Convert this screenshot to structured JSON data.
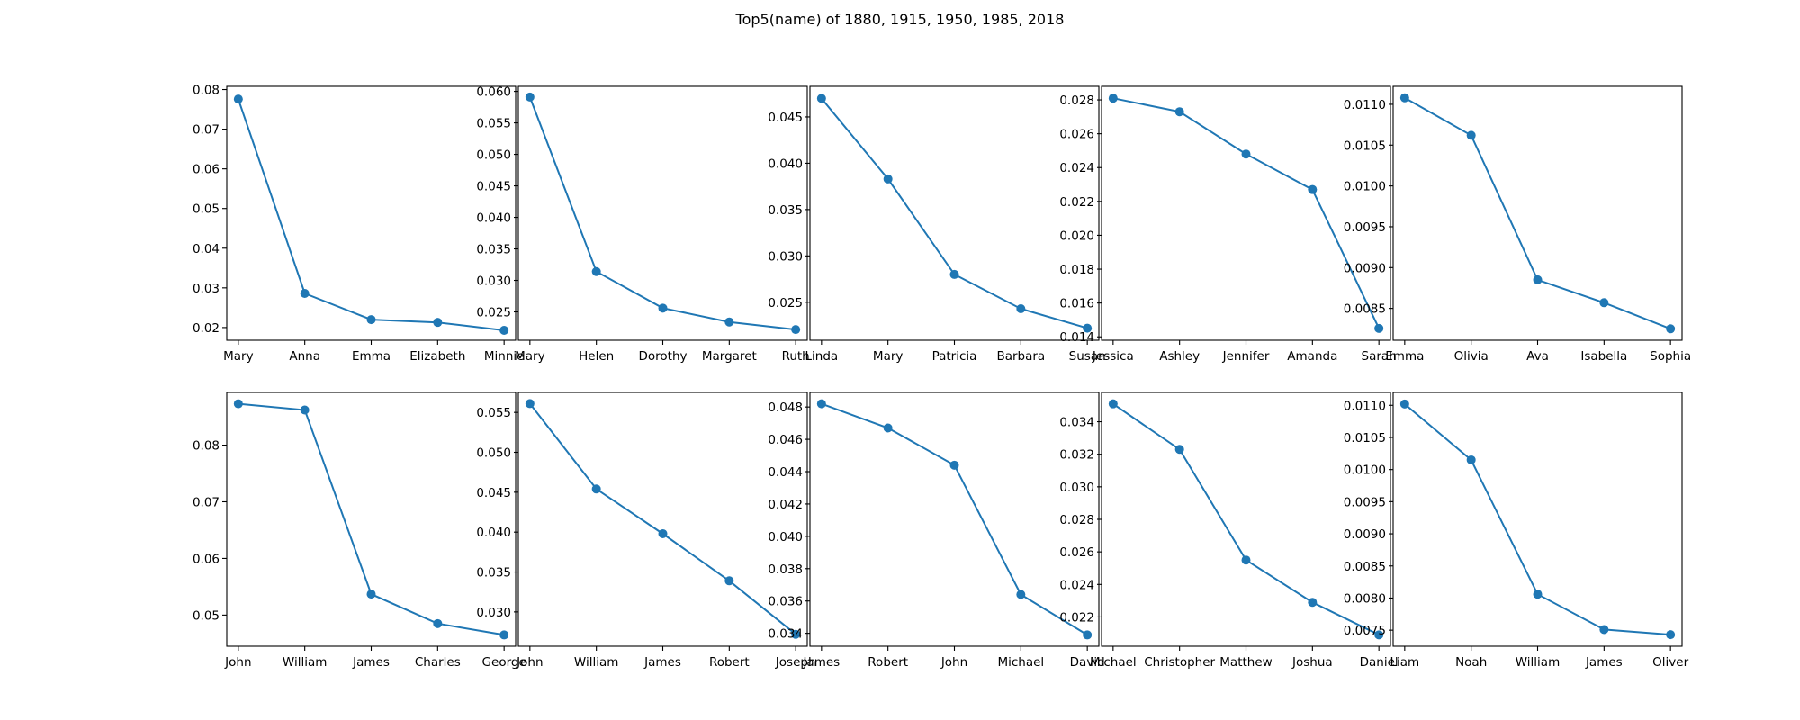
{
  "figure": {
    "title": "Top5(name) of 1880, 1915, 1950, 1985, 2018"
  },
  "series_color": "#1f77b4",
  "chart_data": [
    {
      "type": "line",
      "categories": [
        "Mary",
        "Anna",
        "Emma",
        "Elizabeth",
        "Minnie"
      ],
      "values": [
        0.0776,
        0.0286,
        0.022,
        0.0213,
        0.0193
      ],
      "ylim": [
        0.0168,
        0.0808
      ],
      "yticks": [
        0.02,
        0.03,
        0.04,
        0.05,
        0.06,
        0.07,
        0.08
      ],
      "ytick_labels": [
        "0.02",
        "0.03",
        "0.04",
        "0.05",
        "0.06",
        "0.07",
        "0.08"
      ]
    },
    {
      "type": "line",
      "categories": [
        "Mary",
        "Helen",
        "Dorothy",
        "Margaret",
        "Ruth"
      ],
      "values": [
        0.0591,
        0.0314,
        0.0256,
        0.0234,
        0.0222
      ],
      "ylim": [
        0.0205,
        0.0608
      ],
      "yticks": [
        0.025,
        0.03,
        0.035,
        0.04,
        0.045,
        0.05,
        0.055,
        0.06
      ],
      "ytick_labels": [
        "0.025",
        "0.030",
        "0.035",
        "0.040",
        "0.045",
        "0.050",
        "0.055",
        "0.060"
      ]
    },
    {
      "type": "line",
      "categories": [
        "Linda",
        "Mary",
        "Patricia",
        "Barbara",
        "Susan"
      ],
      "values": [
        0.047,
        0.0383,
        0.028,
        0.0243,
        0.0222
      ],
      "ylim": [
        0.0209,
        0.0483
      ],
      "yticks": [
        0.025,
        0.03,
        0.035,
        0.04,
        0.045
      ],
      "ytick_labels": [
        "0.025",
        "0.030",
        "0.035",
        "0.040",
        "0.045"
      ]
    },
    {
      "type": "line",
      "categories": [
        "Jessica",
        "Ashley",
        "Jennifer",
        "Amanda",
        "Sarah"
      ],
      "values": [
        0.0281,
        0.0273,
        0.0248,
        0.0227,
        0.0145
      ],
      "ylim": [
        0.0138,
        0.0288
      ],
      "yticks": [
        0.014,
        0.016,
        0.018,
        0.02,
        0.022,
        0.024,
        0.026,
        0.028
      ],
      "ytick_labels": [
        "0.014",
        "0.016",
        "0.018",
        "0.020",
        "0.022",
        "0.024",
        "0.026",
        "0.028"
      ]
    },
    {
      "type": "line",
      "categories": [
        "Emma",
        "Olivia",
        "Ava",
        "Isabella",
        "Sophia"
      ],
      "values": [
        0.01108,
        0.01062,
        0.00885,
        0.00857,
        0.00825
      ],
      "ylim": [
        0.00811,
        0.01122
      ],
      "yticks": [
        0.0085,
        0.009,
        0.0095,
        0.01,
        0.0105,
        0.011
      ],
      "ytick_labels": [
        "0.0085",
        "0.0090",
        "0.0095",
        "0.0100",
        "0.0105",
        "0.0110"
      ]
    },
    {
      "type": "line",
      "categories": [
        "John",
        "William",
        "James",
        "Charles",
        "George"
      ],
      "values": [
        0.0873,
        0.0862,
        0.0537,
        0.0485,
        0.0465
      ],
      "ylim": [
        0.0445,
        0.0893
      ],
      "yticks": [
        0.05,
        0.06,
        0.07,
        0.08
      ],
      "ytick_labels": [
        "0.05",
        "0.06",
        "0.07",
        "0.08"
      ]
    },
    {
      "type": "line",
      "categories": [
        "John",
        "William",
        "James",
        "Robert",
        "Joseph"
      ],
      "values": [
        0.0561,
        0.0454,
        0.0398,
        0.0339,
        0.0272
      ],
      "ylim": [
        0.0257,
        0.0575
      ],
      "yticks": [
        0.03,
        0.035,
        0.04,
        0.045,
        0.05,
        0.055
      ],
      "ytick_labels": [
        "0.030",
        "0.035",
        "0.040",
        "0.045",
        "0.050",
        "0.055"
      ]
    },
    {
      "type": "line",
      "categories": [
        "James",
        "Robert",
        "John",
        "Michael",
        "David"
      ],
      "values": [
        0.0482,
        0.0467,
        0.0444,
        0.0364,
        0.0339
      ],
      "ylim": [
        0.0332,
        0.0489
      ],
      "yticks": [
        0.034,
        0.036,
        0.038,
        0.04,
        0.042,
        0.044,
        0.046,
        0.048
      ],
      "ytick_labels": [
        "0.034",
        "0.036",
        "0.038",
        "0.040",
        "0.042",
        "0.044",
        "0.046",
        "0.048"
      ]
    },
    {
      "type": "line",
      "categories": [
        "Michael",
        "Christopher",
        "Matthew",
        "Joshua",
        "Daniel"
      ],
      "values": [
        0.0351,
        0.0323,
        0.0255,
        0.0229,
        0.0209
      ],
      "ylim": [
        0.0202,
        0.0358
      ],
      "yticks": [
        0.022,
        0.024,
        0.026,
        0.028,
        0.03,
        0.032,
        0.034
      ],
      "ytick_labels": [
        "0.022",
        "0.024",
        "0.026",
        "0.028",
        "0.030",
        "0.032",
        "0.034"
      ]
    },
    {
      "type": "line",
      "categories": [
        "Liam",
        "Noah",
        "William",
        "James",
        "Oliver"
      ],
      "values": [
        0.01102,
        0.01015,
        0.00806,
        0.00751,
        0.00743
      ],
      "ylim": [
        0.00725,
        0.0112
      ],
      "yticks": [
        0.0075,
        0.008,
        0.0085,
        0.009,
        0.0095,
        0.01,
        0.0105,
        0.011
      ],
      "ytick_labels": [
        "0.0075",
        "0.0080",
        "0.0085",
        "0.0090",
        "0.0095",
        "0.0100",
        "0.0105",
        "0.0110"
      ]
    }
  ]
}
